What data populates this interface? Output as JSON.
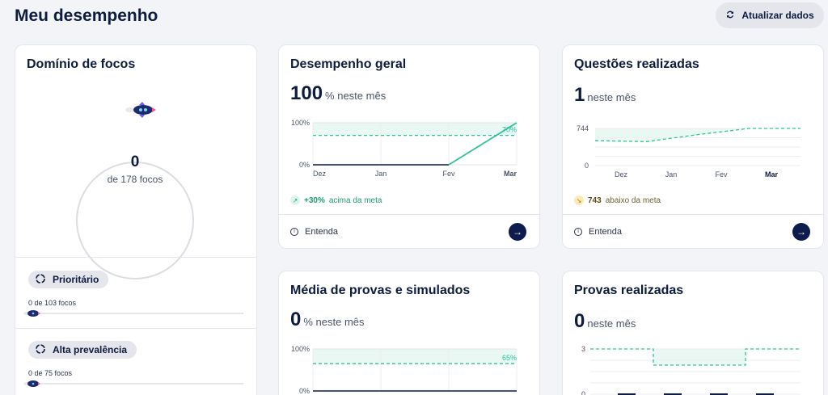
{
  "page": {
    "title": "Meu desempenho",
    "refresh_label": "Atualizar dados"
  },
  "focus": {
    "title": "Domínio de focos",
    "count": "0",
    "total_label": "de 178 focos",
    "items": [
      {
        "label": "Prioritário",
        "progress_label": "0 de 103 focos",
        "progress": 0
      },
      {
        "label": "Alta prevalência",
        "progress_label": "0 de 75 focos",
        "progress": 0
      }
    ]
  },
  "geral": {
    "title": "Desempenho geral",
    "value": "100",
    "unit": "% neste mês",
    "meta_value": "+30%",
    "meta_text": "acima da meta",
    "footer_label": "Entenda",
    "chart_data": {
      "type": "line",
      "categories": [
        "Dez",
        "Jan",
        "Fev",
        "Mar"
      ],
      "values": [
        0,
        0,
        0,
        100
      ],
      "ylim": [
        0,
        100
      ],
      "yticks": [
        "100%",
        "0%"
      ],
      "target": 70,
      "target_label": "70%"
    }
  },
  "questoes": {
    "title": "Questões realizadas",
    "value": "1",
    "unit": "neste mês",
    "meta_value": "743",
    "meta_text": "abaixo da meta",
    "footer_label": "Entenda",
    "chart_data": {
      "type": "line",
      "categories": [
        "Dez",
        "Jan",
        "Fev",
        "Mar"
      ],
      "values": [
        1,
        1,
        1,
        1
      ],
      "ylim": [
        0,
        744
      ],
      "yticks": [
        "744",
        "0"
      ],
      "target": [
        500,
        480,
        620,
        744,
        744
      ]
    }
  },
  "provas": {
    "title": "Média de provas e simulados",
    "value": "0",
    "unit": "% neste mês",
    "chart_data": {
      "type": "line",
      "ylim": [
        0,
        100
      ],
      "yticks": [
        "100%",
        "0%"
      ],
      "target": 65,
      "target_label": "65%"
    }
  },
  "provas_realizadas": {
    "title": "Provas realizadas",
    "value": "0",
    "unit": "neste mês",
    "chart_data": {
      "type": "bar",
      "ylim": [
        0,
        3
      ],
      "yticks": [
        "3",
        "0"
      ]
    }
  },
  "colors": {
    "accent": "#2cc39a",
    "navy": "#0d1b4d",
    "line": "#2a3b6b"
  }
}
